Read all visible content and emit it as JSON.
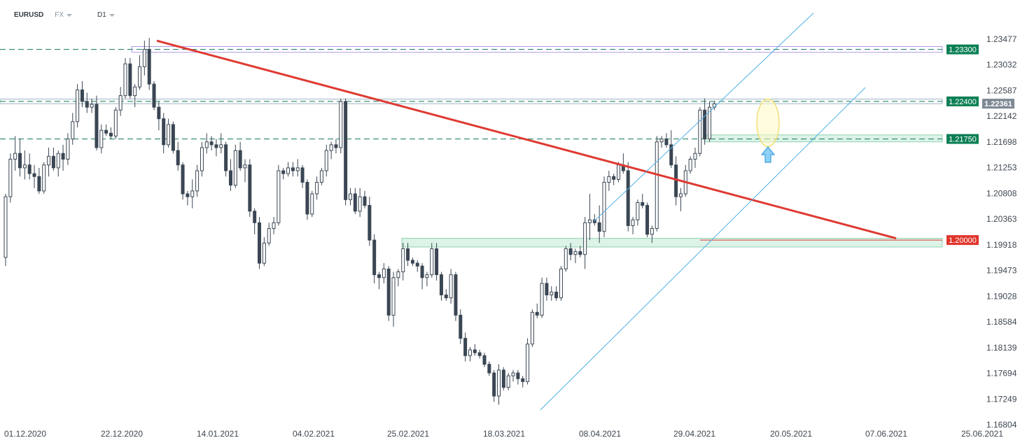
{
  "header": {
    "symbol": "EURUSD",
    "exchange": "FX",
    "timeframe": "D1"
  },
  "colors": {
    "bg": "#ffffff",
    "candle": "#3a4653",
    "wick": "#3a4653",
    "level_line": "#0f7a5a",
    "level_label_bg": "#0b7f54",
    "red_label_bg": "#e0352b",
    "price_label_bg": "#7d8893",
    "trendline": "#df3a32",
    "channel": "#4fb0e5",
    "zone_green_fill": "#ddf3e8",
    "zone_green_border": "#8fd3b0",
    "zone_purple_border": "#b39ae6",
    "arrow": "#4fb0e5",
    "highlight_fill": "#fff7c4",
    "highlight_border": "#f1e07a",
    "axis_text": "#3e4650"
  },
  "chart_data": {
    "type": "candlestick",
    "symbol": "EURUSD",
    "timeframe": "D1",
    "y_ticks": [
      "1.23477",
      "1.23032",
      "1.22587",
      "1.22142",
      "1.21698",
      "1.21253",
      "1.20808",
      "1.20363",
      "1.19918",
      "1.19473",
      "1.19028",
      "1.18584",
      "1.18139",
      "1.17694",
      "1.17249",
      "1.16804"
    ],
    "x_ticks": [
      "01.12.2020",
      "22.12.2020",
      "14.01.2021",
      "04.02.2021",
      "25.02.2021",
      "18.03.2021",
      "08.04.2021",
      "29.04.2021",
      "20.05.2021",
      "07.06.2021",
      "25.06.2021"
    ],
    "ylim": [
      1.16804,
      1.23477
    ],
    "current_price": "1.22361",
    "levels": [
      {
        "label": "1.23300",
        "value": 1.233,
        "type": "resistance"
      },
      {
        "label": "1.22400",
        "value": 1.224,
        "type": "resistance"
      },
      {
        "label": "1.21750",
        "value": 1.2175,
        "type": "support"
      },
      {
        "label": "1.20000",
        "value": 1.2,
        "type": "support"
      }
    ],
    "ohlc": [
      [
        1.197,
        1.208,
        1.1955,
        1.2075
      ],
      [
        1.2075,
        1.215,
        1.2065,
        1.214
      ],
      [
        1.214,
        1.218,
        1.212,
        1.215
      ],
      [
        1.215,
        1.2175,
        1.211,
        1.2125
      ],
      [
        1.2125,
        1.2155,
        1.2105,
        1.213
      ],
      [
        1.213,
        1.215,
        1.2105,
        1.2115
      ],
      [
        1.2115,
        1.213,
        1.209,
        1.211
      ],
      [
        1.211,
        1.2125,
        1.208,
        1.2085
      ],
      [
        1.2085,
        1.2135,
        1.208,
        1.213
      ],
      [
        1.213,
        1.216,
        1.211,
        1.2145
      ],
      [
        1.2145,
        1.216,
        1.212,
        1.2125
      ],
      [
        1.2125,
        1.2155,
        1.211,
        1.215
      ],
      [
        1.215,
        1.2165,
        1.212,
        1.214
      ],
      [
        1.214,
        1.2185,
        1.213,
        1.2175
      ],
      [
        1.2175,
        1.222,
        1.2165,
        1.2205
      ],
      [
        1.2205,
        1.227,
        1.2195,
        1.226
      ],
      [
        1.226,
        1.2275,
        1.223,
        1.224
      ],
      [
        1.224,
        1.2255,
        1.222,
        1.223
      ],
      [
        1.223,
        1.2245,
        1.222,
        1.2235
      ],
      [
        1.2235,
        1.225,
        1.2155,
        1.216
      ],
      [
        1.216,
        1.22,
        1.215,
        1.219
      ],
      [
        1.219,
        1.22,
        1.218,
        1.2185
      ],
      [
        1.2185,
        1.2195,
        1.2175,
        1.218
      ],
      [
        1.218,
        1.223,
        1.2175,
        1.2225
      ],
      [
        1.2225,
        1.2265,
        1.2215,
        1.225
      ],
      [
        1.225,
        1.2315,
        1.2245,
        1.2305
      ],
      [
        1.2305,
        1.2315,
        1.2245,
        1.225
      ],
      [
        1.225,
        1.227,
        1.223,
        1.2265
      ],
      [
        1.2265,
        1.232,
        1.226,
        1.23
      ],
      [
        1.23,
        1.2345,
        1.2285,
        1.233
      ],
      [
        1.233,
        1.235,
        1.226,
        1.227
      ],
      [
        1.227,
        1.2275,
        1.2225,
        1.223
      ],
      [
        1.223,
        1.224,
        1.219,
        1.221
      ],
      [
        1.221,
        1.222,
        1.215,
        1.2165
      ],
      [
        1.2165,
        1.221,
        1.216,
        1.22
      ],
      [
        1.22,
        1.2205,
        1.215,
        1.2155
      ],
      [
        1.2155,
        1.217,
        1.212,
        1.213
      ],
      [
        1.213,
        1.2135,
        1.207,
        1.208
      ],
      [
        1.208,
        1.2085,
        1.206,
        1.2075
      ],
      [
        1.2075,
        1.2105,
        1.2055,
        1.2085
      ],
      [
        1.2085,
        1.213,
        1.2075,
        1.212
      ],
      [
        1.212,
        1.217,
        1.211,
        1.216
      ],
      [
        1.216,
        1.2185,
        1.215,
        1.217
      ],
      [
        1.217,
        1.218,
        1.2155,
        1.2165
      ],
      [
        1.2165,
        1.2175,
        1.2145,
        1.216
      ],
      [
        1.216,
        1.2185,
        1.215,
        1.2165
      ],
      [
        1.2165,
        1.217,
        1.211,
        1.212
      ],
      [
        1.212,
        1.214,
        1.2085,
        1.2095
      ],
      [
        1.2095,
        1.2165,
        1.209,
        1.2155
      ],
      [
        1.2155,
        1.217,
        1.212,
        1.2125
      ],
      [
        1.2125,
        1.214,
        1.21,
        1.213
      ],
      [
        1.213,
        1.214,
        1.204,
        1.205
      ],
      [
        1.205,
        1.2055,
        1.201,
        1.203
      ],
      [
        1.203,
        1.204,
        1.195,
        1.196
      ],
      [
        1.196,
        1.2005,
        1.1955,
        1.1995
      ],
      [
        1.1995,
        1.203,
        1.199,
        1.202
      ],
      [
        1.202,
        1.204,
        1.201,
        1.203
      ],
      [
        1.203,
        1.213,
        1.2025,
        1.212
      ],
      [
        1.212,
        1.2125,
        1.2105,
        1.2115
      ],
      [
        1.2115,
        1.2135,
        1.211,
        1.2125
      ],
      [
        1.2125,
        1.2135,
        1.211,
        1.212
      ],
      [
        1.212,
        1.214,
        1.211,
        1.2125
      ],
      [
        1.2125,
        1.213,
        1.209,
        1.21
      ],
      [
        1.21,
        1.2105,
        1.2035,
        1.2045
      ],
      [
        1.2045,
        1.2085,
        1.204,
        1.208
      ],
      [
        1.208,
        1.211,
        1.207,
        1.21
      ],
      [
        1.21,
        1.2125,
        1.2095,
        1.212
      ],
      [
        1.212,
        1.2165,
        1.211,
        1.2155
      ],
      [
        1.2155,
        1.217,
        1.214,
        1.2165
      ],
      [
        1.2165,
        1.2175,
        1.215,
        1.216
      ],
      [
        1.216,
        1.2245,
        1.215,
        1.224
      ],
      [
        1.224,
        1.2245,
        1.206,
        1.207
      ],
      [
        1.207,
        1.209,
        1.206,
        1.208
      ],
      [
        1.208,
        1.209,
        1.2045,
        1.205
      ],
      [
        1.205,
        1.209,
        1.204,
        1.2075
      ],
      [
        1.2075,
        1.2085,
        1.2055,
        1.206
      ],
      [
        1.206,
        1.2075,
        1.199,
        1.2
      ],
      [
        1.2,
        1.201,
        1.1925,
        1.194
      ],
      [
        1.194,
        1.1945,
        1.1915,
        1.1935
      ],
      [
        1.1935,
        1.196,
        1.1925,
        1.195
      ],
      [
        1.195,
        1.1955,
        1.186,
        1.187
      ],
      [
        1.187,
        1.1945,
        1.185,
        1.1935
      ],
      [
        1.1935,
        1.195,
        1.192,
        1.1945
      ],
      [
        1.1945,
        1.1995,
        1.193,
        1.1985
      ],
      [
        1.1985,
        1.1995,
        1.1955,
        1.1965
      ],
      [
        1.1965,
        1.197,
        1.1955,
        1.196
      ],
      [
        1.196,
        1.1965,
        1.1945,
        1.1955
      ],
      [
        1.1955,
        1.196,
        1.1915,
        1.1935
      ],
      [
        1.1935,
        1.1945,
        1.192,
        1.194
      ],
      [
        1.194,
        1.1995,
        1.1935,
        1.1985
      ],
      [
        1.1985,
        1.1995,
        1.193,
        1.194
      ],
      [
        1.194,
        1.1945,
        1.1895,
        1.1905
      ],
      [
        1.1905,
        1.1915,
        1.1895,
        1.19
      ],
      [
        1.19,
        1.195,
        1.189,
        1.194
      ],
      [
        1.194,
        1.1945,
        1.186,
        1.187
      ],
      [
        1.187,
        1.188,
        1.182,
        1.183
      ],
      [
        1.183,
        1.184,
        1.179,
        1.18
      ],
      [
        1.18,
        1.1815,
        1.179,
        1.181
      ],
      [
        1.181,
        1.182,
        1.18,
        1.1805
      ],
      [
        1.1805,
        1.181,
        1.1795,
        1.18
      ],
      [
        1.18,
        1.1805,
        1.178,
        1.1785
      ],
      [
        1.1785,
        1.179,
        1.1765,
        1.177
      ],
      [
        1.177,
        1.1775,
        1.172,
        1.173
      ],
      [
        1.173,
        1.1785,
        1.1715,
        1.1775
      ],
      [
        1.1775,
        1.178,
        1.174,
        1.1745
      ],
      [
        1.1745,
        1.177,
        1.174,
        1.1765
      ],
      [
        1.1765,
        1.1775,
        1.1755,
        1.177
      ],
      [
        1.177,
        1.1775,
        1.175,
        1.176
      ],
      [
        1.176,
        1.1765,
        1.1745,
        1.1755
      ],
      [
        1.1755,
        1.183,
        1.175,
        1.182
      ],
      [
        1.182,
        1.188,
        1.1815,
        1.1875
      ],
      [
        1.1875,
        1.189,
        1.1865,
        1.187
      ],
      [
        1.187,
        1.1935,
        1.1865,
        1.1925
      ],
      [
        1.1925,
        1.1935,
        1.1895,
        1.1905
      ],
      [
        1.1905,
        1.192,
        1.1895,
        1.191
      ],
      [
        1.191,
        1.192,
        1.1895,
        1.19
      ],
      [
        1.19,
        1.1955,
        1.1895,
        1.195
      ],
      [
        1.195,
        1.199,
        1.1945,
        1.1985
      ],
      [
        1.1985,
        1.1995,
        1.1965,
        1.1975
      ],
      [
        1.1975,
        1.1985,
        1.196,
        1.198
      ],
      [
        1.198,
        1.199,
        1.197,
        1.1975
      ],
      [
        1.1975,
        1.204,
        1.195,
        1.203
      ],
      [
        1.203,
        1.208,
        1.2,
        1.2035
      ],
      [
        1.2035,
        1.2045,
        1.2025,
        1.203
      ],
      [
        1.203,
        1.206,
        1.1995,
        1.2015
      ],
      [
        1.2015,
        1.211,
        1.2005,
        1.21
      ],
      [
        1.21,
        1.212,
        1.2085,
        1.211
      ],
      [
        1.211,
        1.2115,
        1.2095,
        1.2105
      ],
      [
        1.2105,
        1.2135,
        1.21,
        1.213
      ],
      [
        1.213,
        1.215,
        1.2115,
        1.212
      ],
      [
        1.212,
        1.2135,
        1.2015,
        1.2025
      ],
      [
        1.2025,
        1.204,
        1.201,
        1.2035
      ],
      [
        1.2035,
        1.207,
        1.2025,
        1.2065
      ],
      [
        1.2065,
        1.208,
        1.2055,
        1.206
      ],
      [
        1.206,
        1.2065,
        1.2005,
        1.201
      ],
      [
        1.201,
        1.2025,
        1.1995,
        1.202
      ],
      [
        1.202,
        1.218,
        1.2015,
        1.217
      ],
      [
        1.217,
        1.218,
        1.216,
        1.2175
      ],
      [
        1.2175,
        1.2185,
        1.216,
        1.2165
      ],
      [
        1.2165,
        1.219,
        1.2125,
        1.213
      ],
      [
        1.213,
        1.2145,
        1.206,
        1.2075
      ],
      [
        1.2075,
        1.209,
        1.205,
        1.208
      ],
      [
        1.208,
        1.213,
        1.2075,
        1.212
      ],
      [
        1.212,
        1.2145,
        1.2115,
        1.214
      ],
      [
        1.214,
        1.216,
        1.2125,
        1.215
      ],
      [
        1.215,
        1.223,
        1.2145,
        1.2225
      ],
      [
        1.2225,
        1.2245,
        1.2165,
        1.2175
      ],
      [
        1.2175,
        1.224,
        1.217,
        1.223
      ],
      [
        1.223,
        1.224,
        1.2225,
        1.2236
      ]
    ]
  }
}
